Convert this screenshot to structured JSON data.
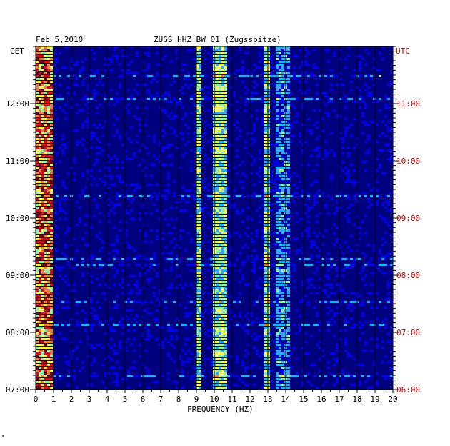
{
  "chart_data": {
    "type": "heatmap",
    "title": "ZUGS HHZ BW 01 (Zugsspitze)",
    "date": "Feb 5,2010",
    "xlabel": "FREQUENCY (HZ)",
    "xlim": [
      0,
      20
    ],
    "x_ticks": [
      "0",
      "1",
      "2",
      "3",
      "4",
      "5",
      "6",
      "7",
      "8",
      "9",
      "10",
      "11",
      "12",
      "13",
      "14",
      "15",
      "16",
      "17",
      "18",
      "19",
      "20"
    ],
    "left_axis_label": "CET",
    "right_axis_label": "UTC",
    "left_ticks": [
      {
        "label": "12:00",
        "hours_after_start": 5
      },
      {
        "label": "11:00",
        "hours_after_start": 4
      },
      {
        "label": "10:00",
        "hours_after_start": 3
      },
      {
        "label": "09:00",
        "hours_after_start": 2
      },
      {
        "label": "08:00",
        "hours_after_start": 1
      },
      {
        "label": "07:00",
        "hours_after_start": 0
      }
    ],
    "right_ticks": [
      {
        "label": "11:00",
        "hours_after_start": 5
      },
      {
        "label": "10:00",
        "hours_after_start": 4
      },
      {
        "label": "09:00",
        "hours_after_start": 3
      },
      {
        "label": "08:00",
        "hours_after_start": 2
      },
      {
        "label": "07:00",
        "hours_after_start": 1
      },
      {
        "label": "06:00",
        "hours_after_start": 0
      }
    ],
    "time_span_hours": 6,
    "grid": true,
    "colormap": [
      "#00007f",
      "#0000ff",
      "#00bfff",
      "#7fff7f",
      "#ffff00",
      "#ff7f00",
      "#ff0000",
      "#7f0000"
    ],
    "background_color": "#00007f",
    "energy_bands_hz": [
      {
        "range": [
          0.0,
          0.8
        ],
        "level": "high"
      },
      {
        "range": [
          8.9,
          9.2
        ],
        "level": "medium"
      },
      {
        "range": [
          9.9,
          10.6
        ],
        "level": "medium"
      },
      {
        "range": [
          12.8,
          13.1
        ],
        "level": "medium"
      },
      {
        "range": [
          13.3,
          14.2
        ],
        "level": "low"
      }
    ]
  },
  "colors": {
    "utc_label": "#cc0000",
    "axis": "#000000",
    "grid": "#000000"
  },
  "footer_mark": "*"
}
